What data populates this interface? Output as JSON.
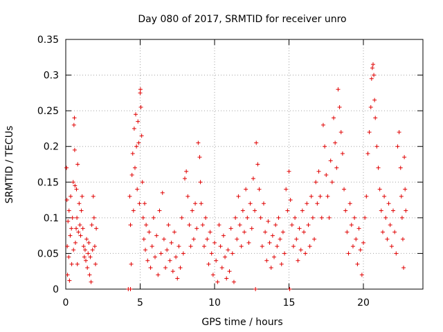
{
  "chart_data": {
    "type": "scatter",
    "title": "Day 080 of 2017, SRMTID for receiver unro",
    "xlabel": "GPS time / hours",
    "ylabel": "SRMTID / TECUs",
    "xlim": [
      0,
      24
    ],
    "ylim": [
      0,
      0.35
    ],
    "x_ticks": [
      0,
      5,
      10,
      15,
      20
    ],
    "x_tick_labels": [
      "0",
      "5",
      "10",
      "15",
      "20"
    ],
    "y_ticks": [
      0,
      0.05,
      0.1,
      0.15,
      0.2,
      0.25,
      0.3,
      0.35
    ],
    "y_tick_labels": [
      "0",
      "0.05",
      "0.1",
      "0.15",
      "0.2",
      "0.25",
      "0.3",
      "0.35"
    ],
    "grid": true,
    "marker": "+",
    "color": "#e00000",
    "series": [
      {
        "name": "SRMTID",
        "points": [
          [
            0.05,
            0.17
          ],
          [
            0.08,
            0.125
          ],
          [
            0.1,
            0.06
          ],
          [
            0.12,
            0.02
          ],
          [
            0.15,
            0.095
          ],
          [
            0.2,
            0.045
          ],
          [
            0.22,
            0.11
          ],
          [
            0.25,
            0.012
          ],
          [
            0.3,
            0.075
          ],
          [
            0.33,
            0.13
          ],
          [
            0.38,
            0.085
          ],
          [
            0.4,
            0.035
          ],
          [
            0.45,
            0.1
          ],
          [
            0.5,
            0.15
          ],
          [
            0.52,
            0.055
          ],
          [
            0.55,
            0.23
          ],
          [
            0.58,
            0.24
          ],
          [
            0.6,
            0.195
          ],
          [
            0.62,
            0.145
          ],
          [
            0.65,
            0.065
          ],
          [
            0.7,
            0.085
          ],
          [
            0.72,
            0.14
          ],
          [
            0.75,
            0.1
          ],
          [
            0.78,
            0.035
          ],
          [
            0.8,
            0.175
          ],
          [
            0.85,
            0.08
          ],
          [
            0.9,
            0.12
          ],
          [
            0.95,
            0.09
          ],
          [
            1.0,
            0.075
          ],
          [
            1.05,
            0.11
          ],
          [
            1.1,
            0.13
          ],
          [
            1.15,
            0.085
          ],
          [
            1.2,
            0.06
          ],
          [
            1.25,
            0.045
          ],
          [
            1.3,
            0.055
          ],
          [
            1.35,
            0.04
          ],
          [
            1.4,
            0.07
          ],
          [
            1.45,
            0.03
          ],
          [
            1.5,
            0.05
          ],
          [
            1.55,
            0.065
          ],
          [
            1.6,
            0.02
          ],
          [
            1.65,
            0.045
          ],
          [
            1.7,
            0.01
          ],
          [
            1.75,
            0.09
          ],
          [
            1.8,
            0.055
          ],
          [
            1.85,
            0.13
          ],
          [
            1.9,
            0.1
          ],
          [
            1.95,
            0.06
          ],
          [
            2.0,
            0.035
          ],
          [
            2.05,
            0.085
          ],
          [
            4.2,
            0.0
          ],
          [
            4.35,
            0.0
          ],
          [
            4.3,
            0.13
          ],
          [
            4.35,
            0.09
          ],
          [
            4.4,
            0.035
          ],
          [
            4.45,
            0.16
          ],
          [
            4.5,
            0.19
          ],
          [
            4.55,
            0.11
          ],
          [
            4.6,
            0.225
          ],
          [
            4.65,
            0.17
          ],
          [
            4.7,
            0.245
          ],
          [
            4.75,
            0.2
          ],
          [
            4.8,
            0.14
          ],
          [
            4.85,
            0.235
          ],
          [
            4.9,
            0.205
          ],
          [
            4.95,
            0.12
          ],
          [
            5.0,
            0.275
          ],
          [
            5.02,
            0.28
          ],
          [
            5.05,
            0.255
          ],
          [
            5.1,
            0.215
          ],
          [
            5.15,
            0.15
          ],
          [
            5.2,
            0.1
          ],
          [
            5.25,
            0.07
          ],
          [
            5.3,
            0.12
          ],
          [
            5.35,
            0.055
          ],
          [
            5.4,
            0.09
          ],
          [
            5.5,
            0.04
          ],
          [
            5.6,
            0.08
          ],
          [
            5.7,
            0.03
          ],
          [
            5.8,
            0.06
          ],
          [
            5.9,
            0.1
          ],
          [
            6.0,
            0.045
          ],
          [
            6.1,
            0.075
          ],
          [
            6.2,
            0.02
          ],
          [
            6.3,
            0.11
          ],
          [
            6.4,
            0.05
          ],
          [
            6.5,
            0.135
          ],
          [
            6.6,
            0.07
          ],
          [
            6.7,
            0.03
          ],
          [
            6.8,
            0.055
          ],
          [
            6.9,
            0.09
          ],
          [
            7.0,
            0.04
          ],
          [
            7.1,
            0.065
          ],
          [
            7.2,
            0.025
          ],
          [
            7.3,
            0.08
          ],
          [
            7.4,
            0.045
          ],
          [
            7.5,
            0.015
          ],
          [
            7.6,
            0.06
          ],
          [
            7.7,
            0.03
          ],
          [
            7.8,
            0.1
          ],
          [
            7.9,
            0.05
          ],
          [
            8.0,
            0.155
          ],
          [
            8.1,
            0.165
          ],
          [
            8.2,
            0.13
          ],
          [
            8.3,
            0.09
          ],
          [
            8.4,
            0.06
          ],
          [
            8.5,
            0.11
          ],
          [
            8.6,
            0.07
          ],
          [
            8.7,
            0.12
          ],
          [
            8.8,
            0.085
          ],
          [
            8.9,
            0.205
          ],
          [
            9.0,
            0.185
          ],
          [
            9.05,
            0.15
          ],
          [
            9.1,
            0.12
          ],
          [
            9.2,
            0.09
          ],
          [
            9.3,
            0.06
          ],
          [
            9.4,
            0.1
          ],
          [
            9.5,
            0.07
          ],
          [
            9.6,
            0.035
          ],
          [
            9.7,
            0.08
          ],
          [
            9.8,
            0.05
          ],
          [
            9.9,
            0.02
          ],
          [
            10.0,
            0.065
          ],
          [
            10.1,
            0.04
          ],
          [
            10.2,
            0.01
          ],
          [
            10.3,
            0.09
          ],
          [
            10.4,
            0.06
          ],
          [
            10.5,
            0.03
          ],
          [
            10.6,
            0.075
          ],
          [
            10.7,
            0.045
          ],
          [
            10.8,
            0.015
          ],
          [
            10.9,
            0.055
          ],
          [
            11.0,
            0.025
          ],
          [
            11.1,
            0.085
          ],
          [
            11.2,
            0.05
          ],
          [
            11.3,
            0.01
          ],
          [
            11.4,
            0.1
          ],
          [
            11.5,
            0.07
          ],
          [
            11.6,
            0.13
          ],
          [
            11.7,
            0.09
          ],
          [
            11.8,
            0.06
          ],
          [
            11.9,
            0.11
          ],
          [
            12.0,
            0.08
          ],
          [
            12.1,
            0.14
          ],
          [
            12.2,
            0.1
          ],
          [
            12.3,
            0.065
          ],
          [
            12.4,
            0.12
          ],
          [
            12.5,
            0.085
          ],
          [
            12.6,
            0.155
          ],
          [
            12.7,
            0.11
          ],
          [
            12.75,
            0.0
          ],
          [
            12.8,
            0.205
          ],
          [
            12.9,
            0.175
          ],
          [
            13.0,
            0.14
          ],
          [
            13.1,
            0.1
          ],
          [
            13.2,
            0.06
          ],
          [
            13.3,
            0.12
          ],
          [
            13.4,
            0.08
          ],
          [
            13.5,
            0.04
          ],
          [
            13.6,
            0.095
          ],
          [
            13.7,
            0.065
          ],
          [
            13.8,
            0.03
          ],
          [
            13.9,
            0.075
          ],
          [
            14.0,
            0.045
          ],
          [
            14.1,
            0.09
          ],
          [
            14.2,
            0.06
          ],
          [
            14.3,
            0.1
          ],
          [
            14.4,
            0.07
          ],
          [
            14.5,
            0.035
          ],
          [
            14.6,
            0.08
          ],
          [
            14.7,
            0.05
          ],
          [
            14.8,
            0.14
          ],
          [
            14.9,
            0.11
          ],
          [
            15.0,
            0.165
          ],
          [
            15.05,
            0.0
          ],
          [
            15.1,
            0.125
          ],
          [
            15.2,
            0.09
          ],
          [
            15.3,
            0.06
          ],
          [
            15.4,
            0.1
          ],
          [
            15.5,
            0.07
          ],
          [
            15.6,
            0.04
          ],
          [
            15.7,
            0.085
          ],
          [
            15.8,
            0.055
          ],
          [
            15.9,
            0.11
          ],
          [
            16.0,
            0.08
          ],
          [
            16.1,
            0.05
          ],
          [
            16.2,
            0.12
          ],
          [
            16.3,
            0.09
          ],
          [
            16.4,
            0.06
          ],
          [
            16.5,
            0.13
          ],
          [
            16.6,
            0.1
          ],
          [
            16.7,
            0.07
          ],
          [
            16.8,
            0.15
          ],
          [
            16.9,
            0.12
          ],
          [
            17.0,
            0.165
          ],
          [
            17.1,
            0.13
          ],
          [
            17.2,
            0.1
          ],
          [
            17.3,
            0.23
          ],
          [
            17.4,
            0.2
          ],
          [
            17.5,
            0.16
          ],
          [
            17.6,
            0.13
          ],
          [
            17.7,
            0.1
          ],
          [
            17.8,
            0.18
          ],
          [
            17.9,
            0.15
          ],
          [
            18.0,
            0.24
          ],
          [
            18.1,
            0.205
          ],
          [
            18.2,
            0.17
          ],
          [
            18.3,
            0.28
          ],
          [
            18.4,
            0.255
          ],
          [
            18.5,
            0.22
          ],
          [
            18.6,
            0.19
          ],
          [
            18.7,
            0.14
          ],
          [
            18.8,
            0.11
          ],
          [
            18.9,
            0.08
          ],
          [
            19.0,
            0.05
          ],
          [
            19.1,
            0.12
          ],
          [
            19.2,
            0.09
          ],
          [
            19.3,
            0.06
          ],
          [
            19.4,
            0.1
          ],
          [
            19.5,
            0.07
          ],
          [
            19.6,
            0.035
          ],
          [
            19.7,
            0.085
          ],
          [
            19.8,
            0.055
          ],
          [
            19.9,
            0.02
          ],
          [
            20.0,
            0.065
          ],
          [
            20.1,
            0.1
          ],
          [
            20.2,
            0.13
          ],
          [
            20.3,
            0.19
          ],
          [
            20.4,
            0.22
          ],
          [
            20.5,
            0.255
          ],
          [
            20.55,
            0.295
          ],
          [
            20.6,
            0.31
          ],
          [
            20.65,
            0.315
          ],
          [
            20.7,
            0.3
          ],
          [
            20.75,
            0.265
          ],
          [
            20.8,
            0.24
          ],
          [
            20.9,
            0.2
          ],
          [
            21.0,
            0.17
          ],
          [
            21.1,
            0.14
          ],
          [
            21.2,
            0.11
          ],
          [
            21.3,
            0.08
          ],
          [
            21.4,
            0.13
          ],
          [
            21.5,
            0.1
          ],
          [
            21.6,
            0.07
          ],
          [
            21.7,
            0.12
          ],
          [
            21.8,
            0.09
          ],
          [
            21.9,
            0.06
          ],
          [
            22.0,
            0.11
          ],
          [
            22.1,
            0.08
          ],
          [
            22.2,
            0.05
          ],
          [
            22.3,
            0.2
          ],
          [
            22.4,
            0.22
          ],
          [
            22.5,
            0.17
          ],
          [
            22.55,
            0.13
          ],
          [
            22.6,
            0.1
          ],
          [
            22.65,
            0.07
          ],
          [
            22.7,
            0.03
          ],
          [
            22.75,
            0.185
          ],
          [
            22.8,
            0.14
          ],
          [
            22.85,
            0.11
          ]
        ]
      }
    ]
  }
}
